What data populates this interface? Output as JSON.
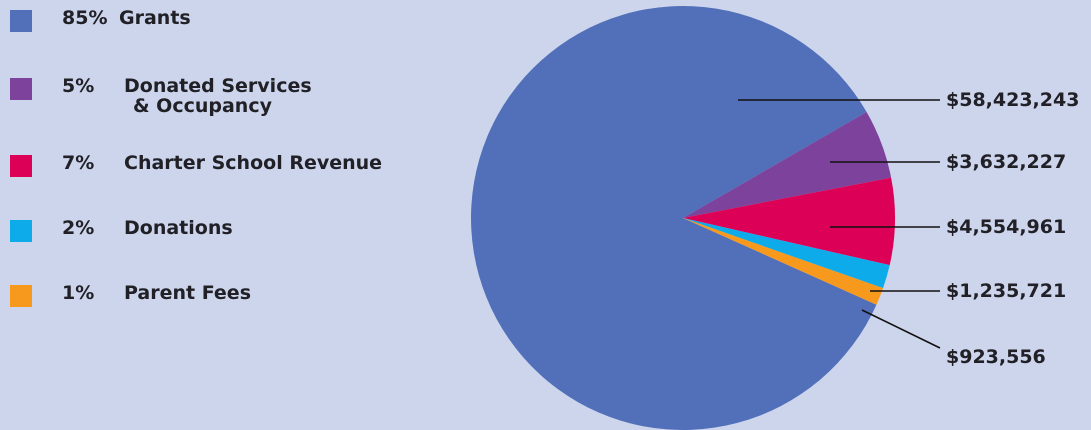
{
  "chart_data": {
    "type": "pie",
    "title": "",
    "slices": [
      {
        "name": "Grants",
        "percent_label": "85%",
        "value": 58423243,
        "value_label": "$58,423,243",
        "color": "#5170b9"
      },
      {
        "name": "Donated Services & Occupancy",
        "name_lines": [
          "Donated Services",
          "& Occupancy"
        ],
        "percent_label": "5%",
        "value": 3632227,
        "value_label": "$3,632,227",
        "color": "#7d429b"
      },
      {
        "name": "Charter School Revenue",
        "percent_label": "7%",
        "value": 4554961,
        "value_label": "$4,554,961",
        "color": "#dc0157"
      },
      {
        "name": "Donations",
        "percent_label": "2%",
        "value": 1235721,
        "value_label": "$1,235,721",
        "color": "#0eabeb"
      },
      {
        "name": "Parent Fees",
        "percent_label": "1%",
        "value": 923556,
        "value_label": "$923,556",
        "color": "#f7991c"
      }
    ],
    "legend_position": "left"
  }
}
